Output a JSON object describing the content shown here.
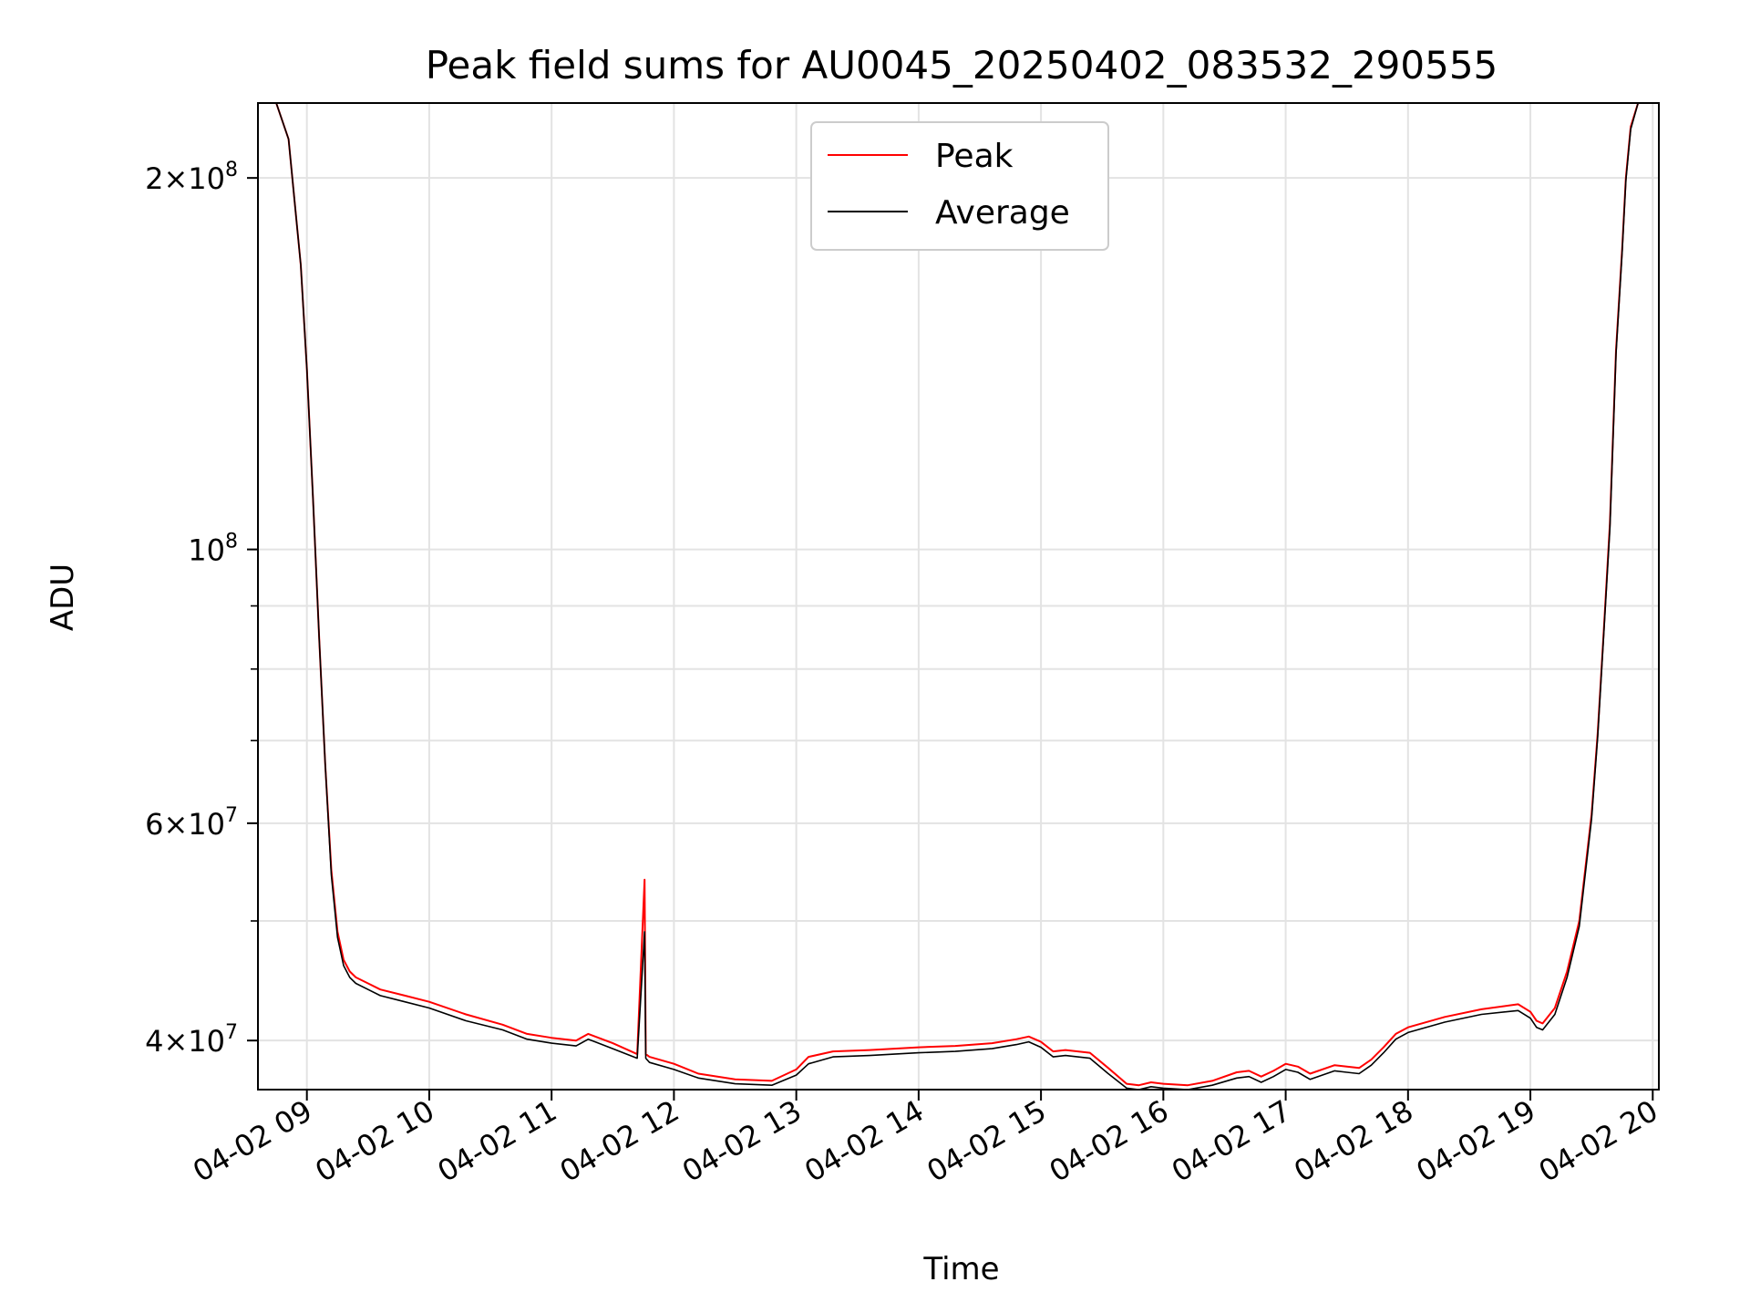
{
  "chart_data": {
    "type": "line",
    "title": "Peak field sums for AU0045_20250402_083532_290555",
    "xlabel": "Time",
    "ylabel": "ADU",
    "yscale": "log",
    "xlim": [
      8.6,
      20.05
    ],
    "ylim": [
      36500000,
      230000000
    ],
    "grid": true,
    "legend_position": "upper center",
    "x_ticks": [
      {
        "value": 9,
        "label": "04-02 09"
      },
      {
        "value": 10,
        "label": "04-02 10"
      },
      {
        "value": 11,
        "label": "04-02 11"
      },
      {
        "value": 12,
        "label": "04-02 12"
      },
      {
        "value": 13,
        "label": "04-02 13"
      },
      {
        "value": 14,
        "label": "04-02 14"
      },
      {
        "value": 15,
        "label": "04-02 15"
      },
      {
        "value": 16,
        "label": "04-02 16"
      },
      {
        "value": 17,
        "label": "04-02 17"
      },
      {
        "value": 18,
        "label": "04-02 18"
      },
      {
        "value": 19,
        "label": "04-02 19"
      },
      {
        "value": 20,
        "label": "04-02 20"
      }
    ],
    "y_ticks": [
      {
        "value": 40000000,
        "mant": "4",
        "exp": "7"
      },
      {
        "value": 60000000,
        "mant": "6",
        "exp": "7"
      },
      {
        "value": 100000000,
        "mant": "",
        "exp": "8"
      },
      {
        "value": 200000000,
        "mant": "2",
        "exp": "8"
      }
    ],
    "y_minor_ticks": [
      50000000,
      70000000,
      80000000,
      90000000
    ],
    "series": [
      {
        "name": "Peak",
        "color": "#ff0000",
        "x": [
          8.6,
          8.75,
          8.85,
          8.95,
          9.0,
          9.05,
          9.1,
          9.15,
          9.2,
          9.25,
          9.3,
          9.35,
          9.4,
          9.5,
          9.6,
          9.8,
          10.0,
          10.3,
          10.6,
          10.8,
          11.0,
          11.2,
          11.3,
          11.5,
          11.7,
          11.76,
          11.77,
          11.8,
          12.0,
          12.2,
          12.5,
          12.8,
          13.0,
          13.1,
          13.3,
          13.6,
          14.0,
          14.3,
          14.6,
          14.8,
          14.9,
          15.0,
          15.1,
          15.2,
          15.4,
          15.55,
          15.7,
          15.8,
          15.9,
          16.0,
          16.2,
          16.4,
          16.6,
          16.7,
          16.8,
          16.9,
          17.0,
          17.1,
          17.2,
          17.4,
          17.5,
          17.6,
          17.7,
          17.8,
          17.9,
          18.0,
          18.3,
          18.6,
          18.9,
          19.0,
          19.05,
          19.1,
          19.2,
          19.3,
          19.4,
          19.5,
          19.55,
          19.6,
          19.65,
          19.7,
          19.75,
          19.78,
          19.82,
          19.88,
          19.95,
          20.05
        ],
        "y": [
          230000000,
          230000000,
          215000000,
          170000000,
          140000000,
          110000000,
          85000000,
          67000000,
          55000000,
          49000000,
          46500000,
          45500000,
          45000000,
          44500000,
          44000000,
          43500000,
          43000000,
          42000000,
          41200000,
          40500000,
          40200000,
          40000000,
          40500000,
          39800000,
          39000000,
          54000000,
          39000000,
          38800000,
          38300000,
          37600000,
          37200000,
          37100000,
          37900000,
          38800000,
          39200000,
          39300000,
          39500000,
          39600000,
          39800000,
          40100000,
          40300000,
          39900000,
          39200000,
          39300000,
          39100000,
          38000000,
          36900000,
          36800000,
          37000000,
          36900000,
          36800000,
          37100000,
          37700000,
          37800000,
          37400000,
          37800000,
          38300000,
          38100000,
          37600000,
          38200000,
          38100000,
          38000000,
          38600000,
          39500000,
          40500000,
          41000000,
          41800000,
          42400000,
          42800000,
          42200000,
          41500000,
          41300000,
          42500000,
          45500000,
          50000000,
          61000000,
          71000000,
          86000000,
          105000000,
          145000000,
          175000000,
          200000000,
          220000000,
          230000000,
          230000000,
          230000000
        ]
      },
      {
        "name": "Average",
        "color": "#000000",
        "x": [
          8.6,
          8.75,
          8.85,
          8.95,
          9.0,
          9.05,
          9.1,
          9.15,
          9.2,
          9.25,
          9.3,
          9.35,
          9.4,
          9.5,
          9.6,
          9.8,
          10.0,
          10.3,
          10.6,
          10.8,
          11.0,
          11.2,
          11.3,
          11.5,
          11.7,
          11.76,
          11.77,
          11.8,
          12.0,
          12.2,
          12.5,
          12.8,
          13.0,
          13.1,
          13.3,
          13.6,
          14.0,
          14.3,
          14.6,
          14.8,
          14.9,
          15.0,
          15.1,
          15.2,
          15.4,
          15.55,
          15.7,
          15.8,
          15.9,
          16.0,
          16.2,
          16.4,
          16.6,
          16.7,
          16.8,
          16.9,
          17.0,
          17.1,
          17.2,
          17.4,
          17.5,
          17.6,
          17.7,
          17.8,
          17.9,
          18.0,
          18.3,
          18.6,
          18.9,
          19.0,
          19.05,
          19.1,
          19.2,
          19.3,
          19.4,
          19.5,
          19.55,
          19.6,
          19.65,
          19.7,
          19.75,
          19.78,
          19.82,
          19.88,
          19.95,
          20.05
        ],
        "y": [
          230000000,
          230000000,
          215000000,
          170000000,
          140000000,
          110000000,
          85000000,
          67000000,
          54500000,
          48500000,
          46000000,
          45000000,
          44500000,
          44000000,
          43500000,
          43000000,
          42500000,
          41500000,
          40800000,
          40100000,
          39800000,
          39600000,
          40100000,
          39400000,
          38700000,
          49000000,
          38700000,
          38400000,
          37900000,
          37300000,
          36900000,
          36800000,
          37500000,
          38300000,
          38800000,
          38900000,
          39100000,
          39200000,
          39400000,
          39700000,
          39900000,
          39500000,
          38800000,
          38900000,
          38700000,
          37600000,
          36600000,
          36500000,
          36700000,
          36600000,
          36500000,
          36800000,
          37300000,
          37400000,
          37000000,
          37400000,
          37900000,
          37700000,
          37200000,
          37800000,
          37700000,
          37600000,
          38200000,
          39100000,
          40100000,
          40600000,
          41400000,
          42000000,
          42300000,
          41700000,
          41000000,
          40800000,
          42000000,
          45000000,
          49500000,
          60500000,
          70500000,
          85500000,
          104000000,
          144000000,
          174000000,
          199000000,
          219000000,
          230000000,
          230000000,
          230000000
        ]
      }
    ]
  }
}
